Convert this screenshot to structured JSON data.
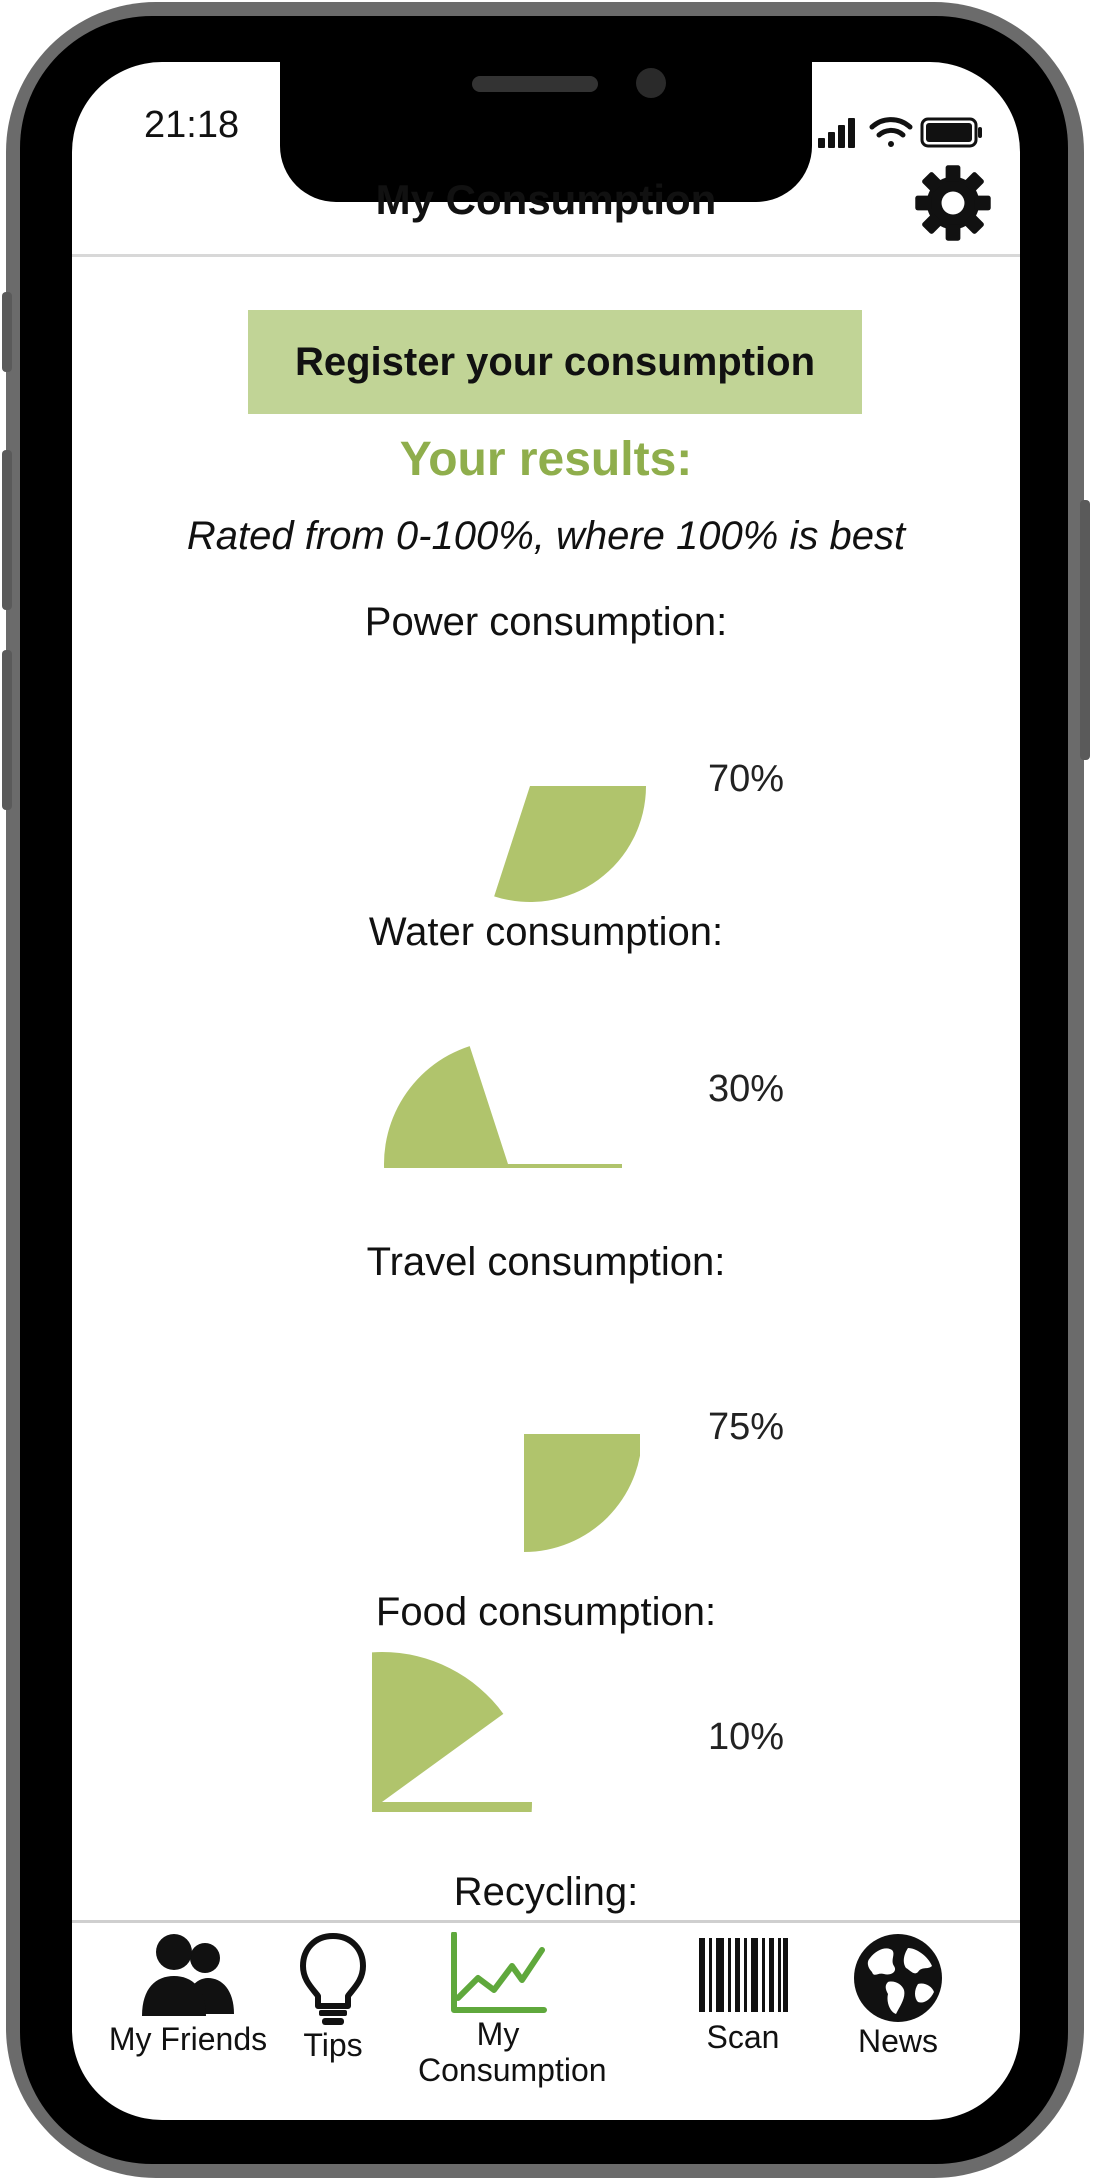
{
  "status_bar": {
    "time": "21:18"
  },
  "header": {
    "title": "My Consumption"
  },
  "actions": {
    "register_label": "Register your consumption"
  },
  "results": {
    "title": "Your results:",
    "subtitle": "Rated from 0-100%, where 100% is best"
  },
  "metrics": [
    {
      "label": "Power consumption:",
      "percent_label": "70%",
      "value": 70
    },
    {
      "label": "Water consumption:",
      "percent_label": "30%",
      "value": 30
    },
    {
      "label": "Travel consumption:",
      "percent_label": "75%",
      "value": 75
    },
    {
      "label": "Food consumption:",
      "percent_label": "10%",
      "value": 10
    },
    {
      "label": "Recycling:"
    }
  ],
  "bottom_nav": {
    "items": [
      {
        "label": "My Friends",
        "icon": "people-icon",
        "active": false
      },
      {
        "label": "Tips",
        "icon": "lightbulb-icon",
        "active": false
      },
      {
        "label": "My Consumption",
        "icon": "line-chart-icon",
        "active": true
      },
      {
        "label": "Scan",
        "icon": "barcode-icon",
        "active": false
      },
      {
        "label": "News",
        "icon": "globe-icon",
        "active": false
      }
    ]
  },
  "colors": {
    "accent": "#8fae4c",
    "pie_fill": "#b0c46c",
    "button_bg": "#c1d496",
    "active_icon": "#5fa83c"
  }
}
